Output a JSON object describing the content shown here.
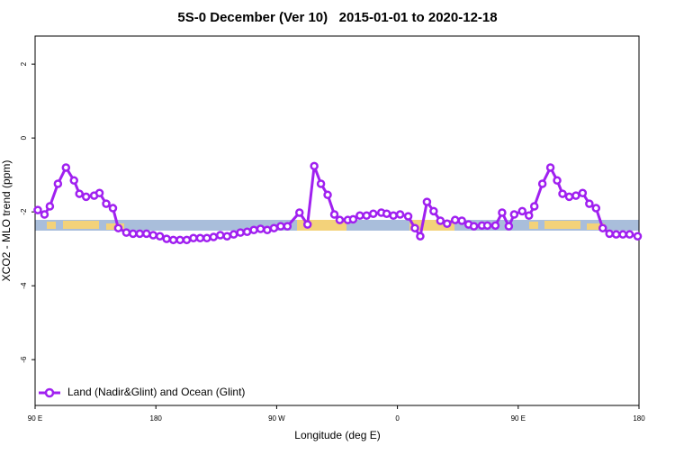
{
  "chart_data": {
    "type": "line",
    "title": "5S-0 December (Ver 10)   2015-01-01 to 2020-12-18",
    "x_label": "Longitude (deg E)",
    "y_label": "XCO2 - MLO trend (ppm)",
    "x": [
      92,
      97,
      101,
      107,
      113,
      119,
      123,
      128,
      134,
      138,
      143,
      148,
      152,
      158,
      163,
      168,
      173,
      178,
      183,
      188,
      193,
      198,
      203,
      208,
      213,
      218,
      223,
      228,
      233,
      238,
      243,
      248,
      253,
      258,
      263,
      268,
      273,
      278,
      287,
      293,
      298,
      303,
      308,
      313,
      317,
      323,
      327,
      332,
      337,
      342,
      348,
      352,
      357,
      362,
      368,
      373,
      377,
      382,
      387,
      392,
      397,
      403,
      408,
      413,
      417,
      423,
      427,
      433,
      438,
      443,
      447,
      453,
      458,
      462,
      468,
      474,
      479,
      483,
      488,
      493,
      498,
      503,
      508,
      513,
      518,
      523,
      528,
      533,
      539
    ],
    "series": [
      {
        "name": "Land (Nadir&Glint) and Ocean (Glint)",
        "color": "#a020f0",
        "values": [
          -1.95,
          -2.07,
          -1.85,
          -1.24,
          -0.8,
          -1.15,
          -1.51,
          -1.59,
          -1.56,
          -1.49,
          -1.78,
          -1.9,
          -2.44,
          -2.56,
          -2.59,
          -2.59,
          -2.59,
          -2.63,
          -2.66,
          -2.73,
          -2.76,
          -2.76,
          -2.76,
          -2.71,
          -2.71,
          -2.71,
          -2.68,
          -2.63,
          -2.66,
          -2.61,
          -2.56,
          -2.54,
          -2.49,
          -2.46,
          -2.49,
          -2.44,
          -2.39,
          -2.39,
          -2.02,
          -2.34,
          -0.76,
          -1.24,
          -1.54,
          -2.07,
          -2.22,
          -2.22,
          -2.2,
          -2.1,
          -2.1,
          -2.05,
          -2.02,
          -2.05,
          -2.1,
          -2.07,
          -2.12,
          -2.44,
          -2.66,
          -1.73,
          -1.98,
          -2.24,
          -2.32,
          -2.22,
          -2.24,
          -2.34,
          -2.39,
          -2.37,
          -2.37,
          -2.37,
          -2.02,
          -2.39,
          -2.07,
          -1.98,
          -2.1,
          -1.85,
          -1.24,
          -0.8,
          -1.15,
          -1.51,
          -1.59,
          -1.56,
          -1.49,
          -1.78,
          -1.9,
          -2.44,
          -2.59,
          -2.61,
          -2.61,
          -2.61,
          -2.66
        ]
      }
    ],
    "xlim": [
      90,
      540
    ],
    "xticks": [
      {
        "value": 90,
        "label": "90 E"
      },
      {
        "value": 180,
        "label": "180"
      },
      {
        "value": 270,
        "label": "90 W"
      },
      {
        "value": 360,
        "label": "0"
      },
      {
        "value": 450,
        "label": "90 E"
      },
      {
        "value": 540,
        "label": "180"
      }
    ],
    "ylim": [
      -7.24,
      2.76
    ],
    "yticks": [
      2,
      0,
      -2,
      -4,
      -6
    ],
    "legend": "bottom-left"
  }
}
